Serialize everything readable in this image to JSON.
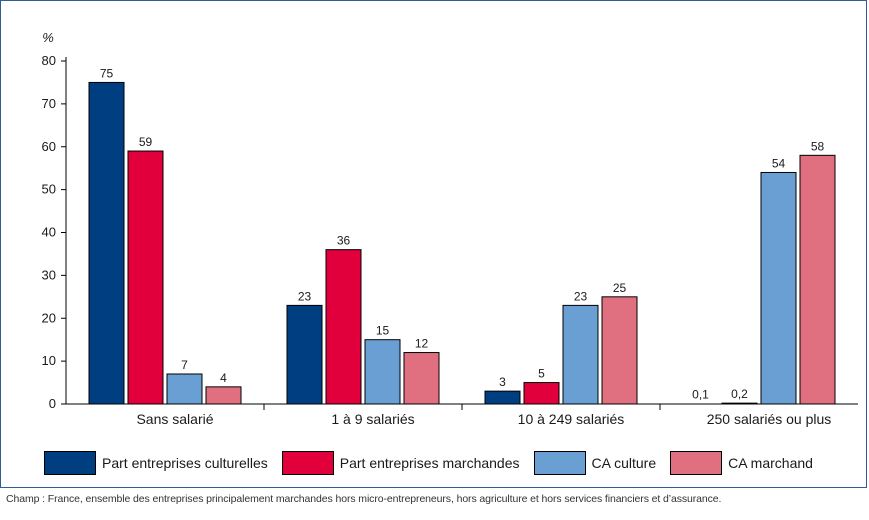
{
  "chart_data": {
    "type": "bar",
    "unit": "%",
    "categories": [
      "Sans salarié",
      "1 à 9 salariés",
      "10 à 249 salariés",
      "250 salariés ou plus"
    ],
    "series": [
      {
        "name": "Part entreprises culturelles",
        "color": "#003e82",
        "values": [
          75,
          23,
          3,
          0.1
        ],
        "labels": [
          "75",
          "23",
          "3",
          "0,1"
        ]
      },
      {
        "name": "Part entreprises marchandes",
        "color": "#e2003c",
        "values": [
          59,
          36,
          5,
          0.2
        ],
        "labels": [
          "59",
          "36",
          "5",
          "0,2"
        ]
      },
      {
        "name": "CA culture",
        "color": "#6a9fd4",
        "values": [
          7,
          15,
          23,
          54
        ],
        "labels": [
          "7",
          "15",
          "23",
          "54"
        ]
      },
      {
        "name": "CA marchand",
        "color": "#e07080",
        "values": [
          4,
          12,
          25,
          58
        ],
        "labels": [
          "4",
          "12",
          "25",
          "58"
        ]
      }
    ],
    "yticks": [
      0,
      10,
      20,
      30,
      40,
      50,
      60,
      70,
      80
    ],
    "ylim": [
      0,
      80
    ],
    "grid": false,
    "legend_position": "bottom"
  },
  "footnote": "Champ : France, ensemble des entreprises principalement marchandes hors micro-entrepreneurs, hors agriculture et hors services financiers et d’assurance."
}
